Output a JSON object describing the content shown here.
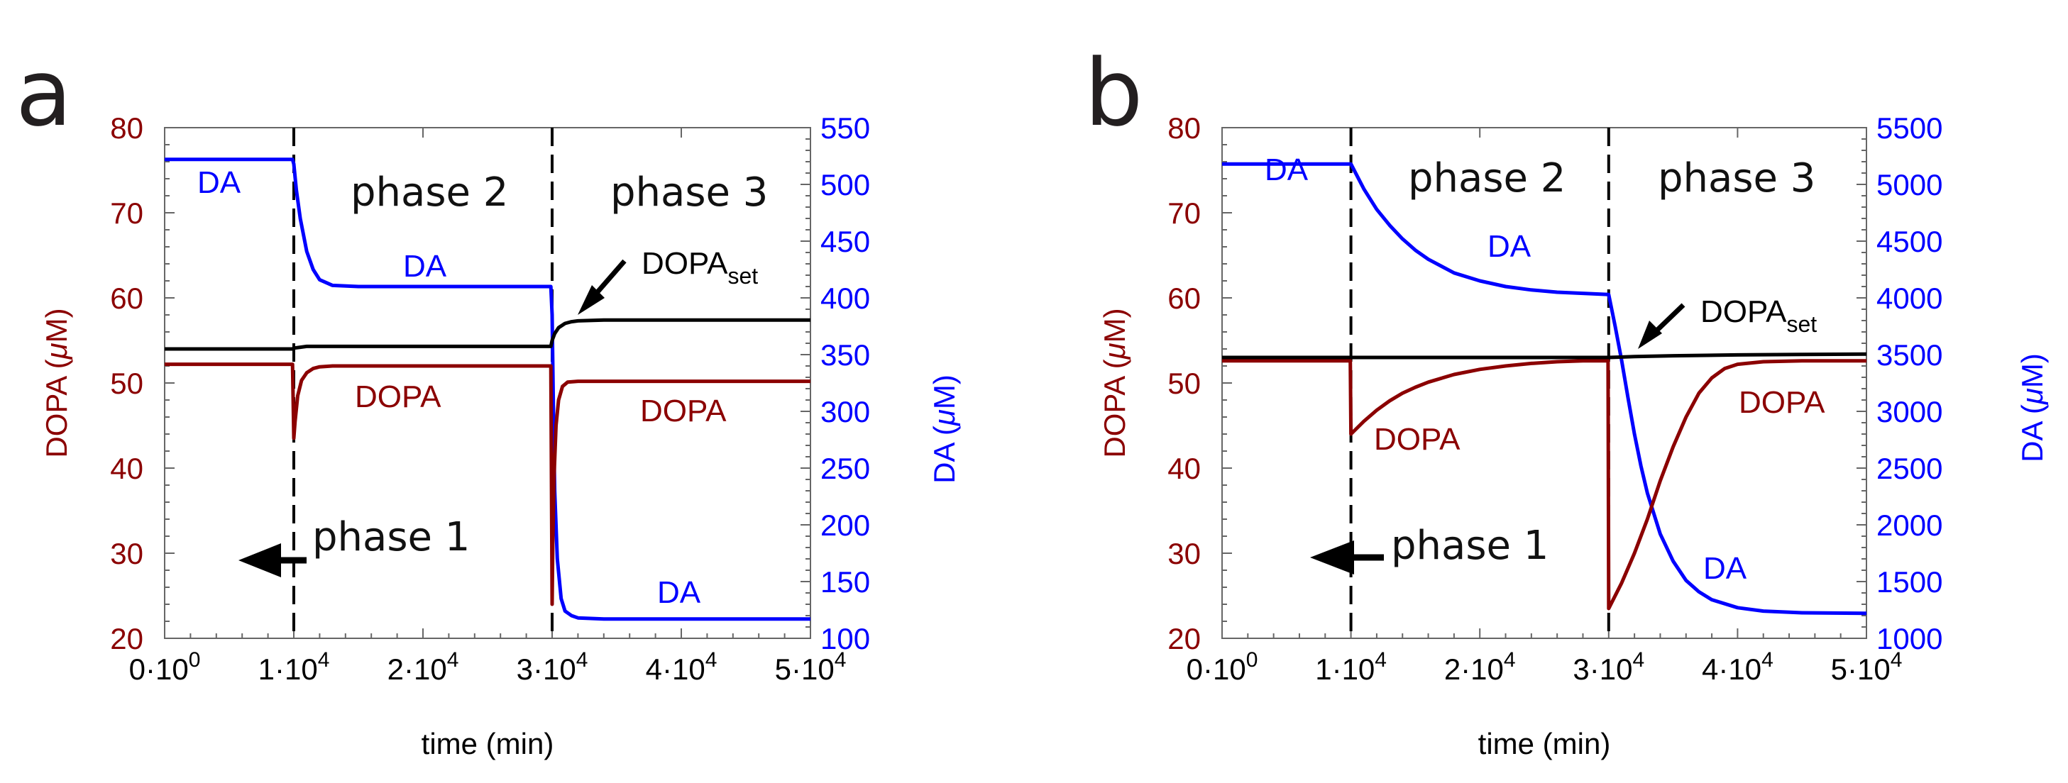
{
  "colors": {
    "dopa": "#8b0000",
    "da": "#0000ff",
    "set": "#000000",
    "axis": "#555555",
    "text": "#000000"
  },
  "chart_data": [
    {
      "panel": "a",
      "type": "line",
      "xlabel": "time (min)",
      "ylabel_left": {
        "pre": "DOPA (",
        "mu": "μ",
        "post": "M)"
      },
      "ylabel_right": {
        "pre": "DA (",
        "mu": "μ",
        "post": "M)"
      },
      "xlim": [
        0,
        50000
      ],
      "ylim_left": [
        20,
        80
      ],
      "ylim_right": [
        100,
        550
      ],
      "x_ticks": [
        0,
        10000,
        20000,
        30000,
        40000,
        50000
      ],
      "x_tick_labels": [
        {
          "mant": "0·10",
          "exp": "0"
        },
        {
          "mant": "1·10",
          "exp": "4"
        },
        {
          "mant": "2·10",
          "exp": "4"
        },
        {
          "mant": "3·10",
          "exp": "4"
        },
        {
          "mant": "4·10",
          "exp": "4"
        },
        {
          "mant": "5·10",
          "exp": "4"
        }
      ],
      "y_left_ticks": [
        "20",
        "30",
        "40",
        "50",
        "60",
        "70",
        "80"
      ],
      "y_right_ticks": [
        "100",
        "150",
        "200",
        "250",
        "300",
        "350",
        "400",
        "450",
        "500",
        "550"
      ],
      "phase_boundaries": [
        10000,
        30000
      ],
      "phase_labels": [
        "phase 1",
        "phase 2",
        "phase 3"
      ],
      "series": [
        {
          "name": "DA",
          "axis": "right",
          "color": "#0000ff",
          "x": [
            0,
            9900,
            10000,
            10200,
            10500,
            11000,
            11500,
            12000,
            13000,
            15000,
            20000,
            29900,
            30000,
            30100,
            30200,
            30400,
            30700,
            31000,
            31500,
            32000,
            34000,
            40000,
            50000
          ],
          "y": [
            522,
            522,
            518,
            495,
            470,
            441,
            425,
            416,
            411,
            410,
            410,
            410,
            385,
            300,
            230,
            170,
            135,
            124,
            120,
            118,
            117,
            117,
            117
          ]
        },
        {
          "name": "DOPA",
          "axis": "left",
          "color": "#8b0000",
          "x": [
            0,
            9900,
            10000,
            10100,
            10300,
            10600,
            11000,
            11500,
            12000,
            13000,
            15000,
            20000,
            29900,
            30000,
            30050,
            30150,
            30300,
            30500,
            30800,
            31200,
            32000,
            34000,
            40000,
            50000
          ],
          "y": [
            52.2,
            52.2,
            43.5,
            45.5,
            48.5,
            50.3,
            51.2,
            51.7,
            51.9,
            52.0,
            52.0,
            52.0,
            52.0,
            24.0,
            31.0,
            39.0,
            45.0,
            48.0,
            49.6,
            50.1,
            50.2,
            50.2,
            50.2,
            50.2
          ]
        },
        {
          "name": "DOPA_set",
          "axis": "left",
          "color": "#000000",
          "x": [
            0,
            9900,
            10000,
            10500,
            11000,
            12000,
            20000,
            29900,
            30000,
            30200,
            30500,
            31000,
            31500,
            32000,
            34000,
            40000,
            50000
          ],
          "y": [
            54.0,
            54.0,
            54.1,
            54.2,
            54.3,
            54.3,
            54.3,
            54.3,
            55.0,
            55.8,
            56.5,
            57.0,
            57.2,
            57.3,
            57.4,
            57.4,
            57.4
          ]
        }
      ],
      "annotations": {
        "da_top": "DA",
        "da_mid": "DA",
        "da_bottom": "DA",
        "dopa_left": "DOPA",
        "dopa_right": "DOPA",
        "dopa_set_main": "DOPA",
        "dopa_set_sub": "set"
      }
    },
    {
      "panel": "b",
      "type": "line",
      "xlabel": "time (min)",
      "ylabel_left": {
        "pre": "DOPA (",
        "mu": "μ",
        "post": "M)"
      },
      "ylabel_right": {
        "pre": "DA (",
        "mu": "μ",
        "post": "M)"
      },
      "xlim": [
        0,
        50000
      ],
      "ylim_left": [
        20,
        80
      ],
      "ylim_right": [
        1000,
        5500
      ],
      "x_ticks": [
        0,
        10000,
        20000,
        30000,
        40000,
        50000
      ],
      "x_tick_labels": [
        {
          "mant": "0·10",
          "exp": "0"
        },
        {
          "mant": "1·10",
          "exp": "4"
        },
        {
          "mant": "2·10",
          "exp": "4"
        },
        {
          "mant": "3·10",
          "exp": "4"
        },
        {
          "mant": "4·10",
          "exp": "4"
        },
        {
          "mant": "5·10",
          "exp": "4"
        }
      ],
      "y_left_ticks": [
        "20",
        "30",
        "40",
        "50",
        "60",
        "70",
        "80"
      ],
      "y_right_ticks": [
        "1000",
        "1500",
        "2000",
        "2500",
        "3000",
        "3500",
        "4000",
        "4500",
        "5000",
        "5500"
      ],
      "phase_boundaries": [
        10000,
        30000
      ],
      "phase_labels": [
        "phase 1",
        "phase 2",
        "phase 3"
      ],
      "series": [
        {
          "name": "DA",
          "axis": "right",
          "color": "#0000ff",
          "x": [
            0,
            10000,
            11000,
            12000,
            13000,
            14000,
            15000,
            16000,
            18000,
            20000,
            22000,
            24000,
            26000,
            28000,
            30000,
            30500,
            31000,
            31500,
            32000,
            32500,
            33000,
            34000,
            35000,
            36000,
            37000,
            38000,
            40000,
            42000,
            45000,
            50000
          ],
          "y": [
            5180,
            5180,
            4960,
            4780,
            4640,
            4520,
            4420,
            4340,
            4220,
            4150,
            4100,
            4070,
            4050,
            4040,
            4030,
            3750,
            3450,
            3120,
            2800,
            2520,
            2280,
            1920,
            1680,
            1510,
            1410,
            1340,
            1270,
            1240,
            1225,
            1220
          ]
        },
        {
          "name": "DOPA",
          "axis": "left",
          "color": "#8b0000",
          "x": [
            0,
            9950,
            10000,
            11000,
            12000,
            13000,
            14000,
            15000,
            16000,
            18000,
            20000,
            22000,
            24000,
            26000,
            28000,
            29950,
            30000,
            31000,
            32000,
            33000,
            34000,
            35000,
            36000,
            37000,
            38000,
            39000,
            40000,
            42000,
            45000,
            50000
          ],
          "y": [
            52.6,
            52.6,
            44.0,
            45.5,
            46.8,
            47.9,
            48.8,
            49.5,
            50.1,
            51.0,
            51.6,
            52.0,
            52.3,
            52.5,
            52.6,
            52.6,
            23.5,
            26.5,
            30.0,
            34.0,
            38.5,
            42.5,
            46.0,
            48.8,
            50.6,
            51.7,
            52.2,
            52.5,
            52.6,
            52.6
          ]
        },
        {
          "name": "DOPA_set",
          "axis": "left",
          "color": "#000000",
          "x": [
            0,
            10000,
            20000,
            30000,
            32000,
            35000,
            40000,
            45000,
            50000
          ],
          "y": [
            53.0,
            53.0,
            53.0,
            53.0,
            53.1,
            53.2,
            53.3,
            53.35,
            53.4
          ]
        }
      ],
      "annotations": {
        "da_top": "DA",
        "da_mid": "DA",
        "da_bottom": "DA",
        "dopa_left": "DOPA",
        "dopa_right": "DOPA",
        "dopa_set_main": "DOPA",
        "dopa_set_sub": "set"
      }
    }
  ]
}
